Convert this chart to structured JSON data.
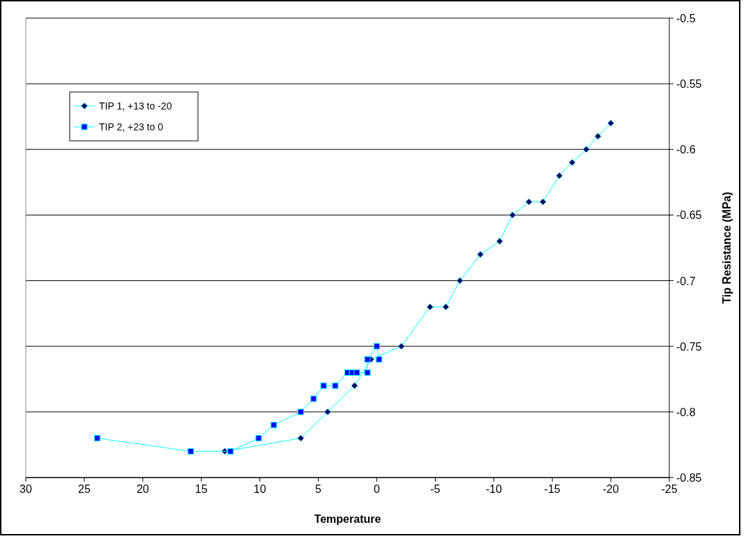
{
  "chart_data": {
    "type": "line",
    "xlabel": "Temperature",
    "ylabel": "Tip Resistance (MPa)",
    "xlim": [
      30,
      -25
    ],
    "xticks": [
      30,
      25,
      20,
      15,
      10,
      5,
      0,
      -5,
      -10,
      -15,
      -20,
      -25
    ],
    "ylim": [
      -0.85,
      -0.5
    ],
    "yticks": [
      -0.85,
      -0.8,
      -0.75,
      -0.7,
      -0.65,
      -0.6,
      -0.55,
      -0.5
    ],
    "grid": "y",
    "legend": "top left",
    "series": [
      {
        "name": "TIP 1, +13 to -20",
        "color": "#00ffff",
        "marker": "diamond",
        "x": [
          13.0,
          6.5,
          4.2,
          1.9,
          0.5,
          -2.1,
          -4.55,
          -5.9,
          -7.1,
          -8.85,
          -10.5,
          -11.6,
          -13.0,
          -14.2,
          -15.6,
          -16.7,
          -17.9,
          -18.9,
          -20.0
        ],
        "values": [
          -0.83,
          -0.82,
          -0.8,
          -0.78,
          -0.76,
          -0.75,
          -0.72,
          -0.72,
          -0.7,
          -0.68,
          -0.67,
          -0.65,
          -0.64,
          -0.64,
          -0.62,
          -0.61,
          -0.6,
          -0.59,
          -0.58
        ]
      },
      {
        "name": "TIP 2, +23 to 0",
        "color": "#00ffff",
        "marker": "square",
        "x": [
          23.9,
          15.9,
          12.5,
          10.1,
          8.8,
          6.5,
          5.4,
          4.55,
          3.55,
          2.5,
          2.1,
          1.7,
          0.8,
          0.8,
          0.0,
          -0.2
        ],
        "values": [
          -0.82,
          -0.83,
          -0.83,
          -0.82,
          -0.81,
          -0.8,
          -0.79,
          -0.78,
          -0.78,
          -0.77,
          -0.77,
          -0.77,
          -0.77,
          -0.76,
          -0.75,
          -0.76
        ]
      }
    ]
  }
}
